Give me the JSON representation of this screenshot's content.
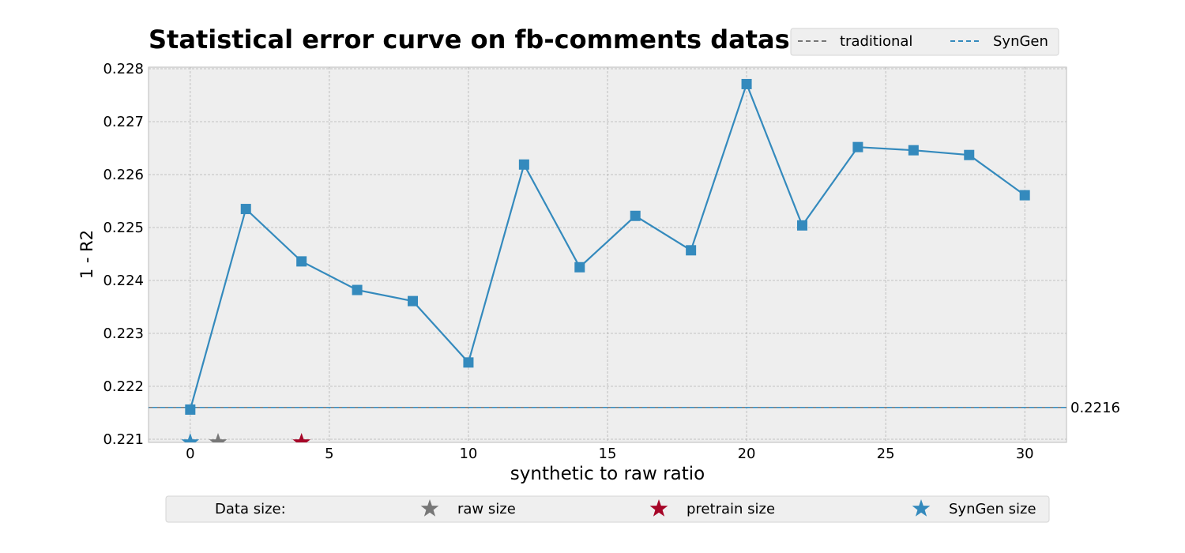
{
  "chart_data": {
    "type": "line",
    "title": "Statistical error curve on fb-comments dataset",
    "xlabel": "synthetic to raw ratio",
    "ylabel": "1 - R2",
    "xlim": [
      -1.5,
      31.5
    ],
    "ylim": [
      0.22094,
      0.22803
    ],
    "xticks": [
      0,
      5,
      10,
      15,
      20,
      25,
      30
    ],
    "yticks": [
      0.221,
      0.222,
      0.223,
      0.224,
      0.225,
      0.226,
      0.227,
      0.228
    ],
    "grid": true,
    "series": [
      {
        "name": "SynGen",
        "color": "#348abd",
        "marker": "square",
        "x": [
          0,
          2,
          4,
          6,
          8,
          10,
          12,
          14,
          16,
          18,
          20,
          22,
          24,
          26,
          28,
          30
        ],
        "y": [
          0.22156,
          0.22535,
          0.22436,
          0.22382,
          0.22361,
          0.22245,
          0.22619,
          0.22425,
          0.22522,
          0.22457,
          0.22771,
          0.22504,
          0.22652,
          0.22646,
          0.22637,
          0.22561
        ]
      }
    ],
    "reference_lines": [
      {
        "y": 0.2216,
        "label": "0.2216",
        "color": "#348abd",
        "style": "dashed"
      }
    ],
    "legend": {
      "position": "top-right",
      "entries": [
        {
          "label": "traditional",
          "color": "#777777",
          "style": "dashed"
        },
        {
          "label": "SynGen",
          "color": "#348abd",
          "style": "dashed"
        }
      ]
    },
    "size_markers": [
      {
        "x": 0,
        "color": "#348abd"
      },
      {
        "x": 1,
        "color": "#777777"
      },
      {
        "x": 4,
        "color": "#a60628"
      }
    ],
    "bottom_legend": {
      "title": "Data size:",
      "entries": [
        {
          "label": "raw size",
          "color": "#777777"
        },
        {
          "label": "pretrain size",
          "color": "#a60628"
        },
        {
          "label": "SynGen size",
          "color": "#348abd"
        }
      ]
    }
  }
}
